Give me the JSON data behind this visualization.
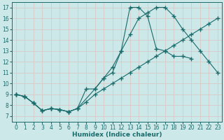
{
  "xlabel": "Humidex (Indice chaleur)",
  "bg_color": "#cce8e8",
  "grid_color": "#b8d8d8",
  "line_color": "#1a6b6b",
  "xlim": [
    -0.5,
    23.5
  ],
  "ylim": [
    6.5,
    17.5
  ],
  "xticks": [
    0,
    1,
    2,
    3,
    4,
    5,
    6,
    7,
    8,
    9,
    10,
    11,
    12,
    13,
    14,
    15,
    16,
    17,
    18,
    19,
    20,
    21,
    22,
    23
  ],
  "yticks": [
    7,
    8,
    9,
    10,
    11,
    12,
    13,
    14,
    15,
    16,
    17
  ],
  "line1_x": [
    0,
    1,
    2,
    3,
    4,
    5,
    6,
    7,
    8,
    9,
    10,
    11,
    12,
    13,
    14,
    15,
    16,
    17,
    18,
    19,
    20,
    21,
    22,
    23
  ],
  "line1_y": [
    9.0,
    8.8,
    8.2,
    7.5,
    7.7,
    7.6,
    7.4,
    7.7,
    8.3,
    9.0,
    9.5,
    10.0,
    10.5,
    11.0,
    11.5,
    12.0,
    12.5,
    13.0,
    13.5,
    14.0,
    14.5,
    15.0,
    15.5,
    16.0
  ],
  "line2_x": [
    0,
    1,
    2,
    3,
    4,
    5,
    6,
    7,
    9,
    10,
    11,
    12,
    13,
    14,
    15,
    16,
    17,
    18,
    19,
    20,
    21,
    22,
    23
  ],
  "line2_y": [
    9.0,
    8.8,
    8.2,
    7.5,
    7.7,
    7.6,
    7.4,
    7.7,
    9.5,
    10.5,
    11.5,
    13.0,
    14.5,
    16.0,
    16.5,
    17.0,
    17.0,
    16.2,
    15.0,
    14.0,
    13.0,
    12.0,
    11.0
  ],
  "line3_x": [
    0,
    1,
    2,
    3,
    4,
    5,
    6,
    7,
    8,
    9,
    10,
    11,
    12,
    13,
    14,
    15,
    16,
    17,
    18,
    19,
    20
  ],
  "line3_y": [
    9.0,
    8.8,
    8.2,
    7.5,
    7.7,
    7.6,
    7.4,
    7.7,
    9.5,
    9.5,
    10.5,
    11.0,
    13.0,
    17.0,
    17.0,
    16.2,
    13.2,
    13.0,
    12.5,
    12.5,
    12.3
  ],
  "marker": "+",
  "markersize": 4,
  "linewidth": 0.8,
  "tick_fontsize": 5.5,
  "xlabel_fontsize": 6.5
}
